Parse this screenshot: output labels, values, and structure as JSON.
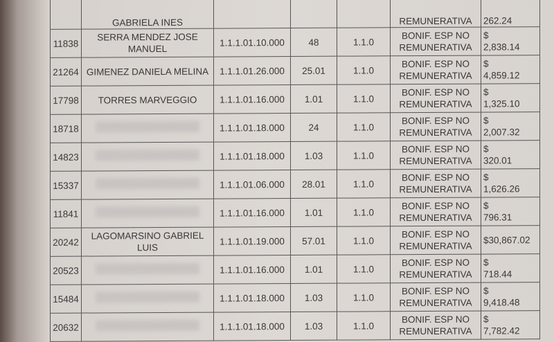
{
  "top_row": {
    "name": "GABRIELA INES",
    "concept": "REMUNERATIVA",
    "amount": "262.24"
  },
  "rows": [
    {
      "id": "11838",
      "name": "SERRA MENDEZ JOSE MANUEL",
      "code": "1.1.1.01.10.000",
      "qty": "48",
      "ver": "1.1.0",
      "concept": "BONIF. ESP NO REMUNERATIVA",
      "currency": "$",
      "amount": "2,838.14"
    },
    {
      "id": "21264",
      "name": "GIMENEZ DANIELA MELINA",
      "code": "1.1.1.01.26.000",
      "qty": "25.01",
      "ver": "1.1.0",
      "concept": "BONIF. ESP NO REMUNERATIVA",
      "currency": "$",
      "amount": "4,859.12"
    },
    {
      "id": "17798",
      "name": "TORRES MARVEGGIO",
      "code": "1.1.1.01.16.000",
      "qty": "1.01",
      "ver": "1.1.0",
      "concept": "BONIF. ESP NO REMUNERATIVA",
      "currency": "$",
      "amount": "1,325.10"
    },
    {
      "id": "18718",
      "name": "",
      "code": "1.1.1.01.18.000",
      "qty": "24",
      "ver": "1.1.0",
      "concept": "BONIF. ESP NO REMUNERATIVA",
      "currency": "$",
      "amount": "2,007.32"
    },
    {
      "id": "14823",
      "name": "",
      "code": "1.1.1.01.18.000",
      "qty": "1.03",
      "ver": "1.1.0",
      "concept": "BONIF. ESP NO REMUNERATIVA",
      "currency": "$",
      "amount": "320.01"
    },
    {
      "id": "15337",
      "name": "",
      "code": "1.1.1.01.06.000",
      "qty": "28.01",
      "ver": "1.1.0",
      "concept": "BONIF. ESP NO REMUNERATIVA",
      "currency": "$",
      "amount": "1,626.26"
    },
    {
      "id": "11841",
      "name": "",
      "code": "1.1.1.01.16.000",
      "qty": "1.01",
      "ver": "1.1.0",
      "concept": "BONIF. ESP NO REMUNERATIVA",
      "currency": "$",
      "amount": "796.31"
    },
    {
      "id": "20242",
      "name": "LAGOMARSINO GABRIEL LUIS",
      "code": "1.1.1.01.19.000",
      "qty": "57.01",
      "ver": "1.1.0",
      "concept": "BONIF. ESP NO REMUNERATIVA",
      "currency": "",
      "amount": "$30,867.02"
    },
    {
      "id": "20523",
      "name": "",
      "code": "1.1.1.01.16.000",
      "qty": "1.01",
      "ver": "1.1.0",
      "concept": "BONIF. ESP NO REMUNERATIVA",
      "currency": "$",
      "amount": "718.44"
    },
    {
      "id": "15484",
      "name": "",
      "code": "1.1.1.01.18.000",
      "qty": "1.03",
      "ver": "1.1.0",
      "concept": "BONIF. ESP NO REMUNERATIVA",
      "currency": "$",
      "amount": "9,418.48"
    },
    {
      "id": "20632",
      "name": "",
      "code": "1.1.1.01.18.000",
      "qty": "1.03",
      "ver": "1.1.0",
      "concept": "BONIF. ESP NO REMUNERATIVA",
      "currency": "$",
      "amount": "7,782.42"
    }
  ]
}
